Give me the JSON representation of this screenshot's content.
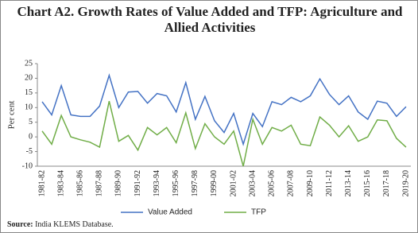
{
  "chart_data": {
    "type": "line",
    "title": "Chart A2. Growth Rates of Value Added and TFP: Agriculture and Allied Activities",
    "y_label": "Per cent",
    "source_label": "Source:",
    "source": "India KLEMS Database.",
    "categories": [
      "1981-82",
      null,
      "1983-84",
      null,
      "1985-86",
      null,
      "1987-88",
      null,
      "1989-90",
      null,
      "1991-92",
      null,
      "1993-94",
      null,
      "1995-96",
      null,
      "1997-98",
      null,
      "1999-00",
      null,
      "2001-02",
      null,
      "2003-04",
      null,
      "2005-06",
      null,
      "2007-08",
      null,
      "2009-10",
      null,
      "2011-12",
      null,
      "2013-14",
      null,
      "2015-16",
      null,
      "2017-18",
      null,
      "2019-20"
    ],
    "series": [
      {
        "name": "Value Added",
        "color": "#4472c4",
        "values": [
          12,
          7.5,
          17.5,
          7.5,
          7,
          7,
          10.5,
          21,
          10,
          15.3,
          15.5,
          11.5,
          14.8,
          14,
          8.5,
          18.5,
          6,
          13.8,
          5.5,
          1.5,
          8,
          -2.5,
          8,
          3.5,
          12,
          11,
          13.5,
          12,
          14,
          19.8,
          14.5,
          11,
          14,
          8.5,
          6,
          12.2,
          11.5,
          7,
          10.3
        ]
      },
      {
        "name": "TFP",
        "color": "#70ad47",
        "values": [
          2,
          -2.5,
          7.3,
          0,
          -1,
          -1.8,
          -3.5,
          12.2,
          -1.5,
          0.5,
          -4.5,
          3.2,
          0.7,
          3.2,
          -2,
          8.2,
          -4,
          4.5,
          0,
          -2.5,
          2,
          -10,
          6,
          -2.5,
          3.2,
          2,
          4,
          -2.5,
          -3,
          6.8,
          4,
          0,
          3.8,
          -1.5,
          0,
          5.8,
          5.5,
          -0.5,
          -3.5
        ]
      }
    ],
    "ylim": [
      -10,
      25
    ],
    "yticks": [
      -10,
      -5,
      0,
      5,
      10,
      15,
      20,
      25
    ],
    "grid": false,
    "legend": "bottom"
  }
}
